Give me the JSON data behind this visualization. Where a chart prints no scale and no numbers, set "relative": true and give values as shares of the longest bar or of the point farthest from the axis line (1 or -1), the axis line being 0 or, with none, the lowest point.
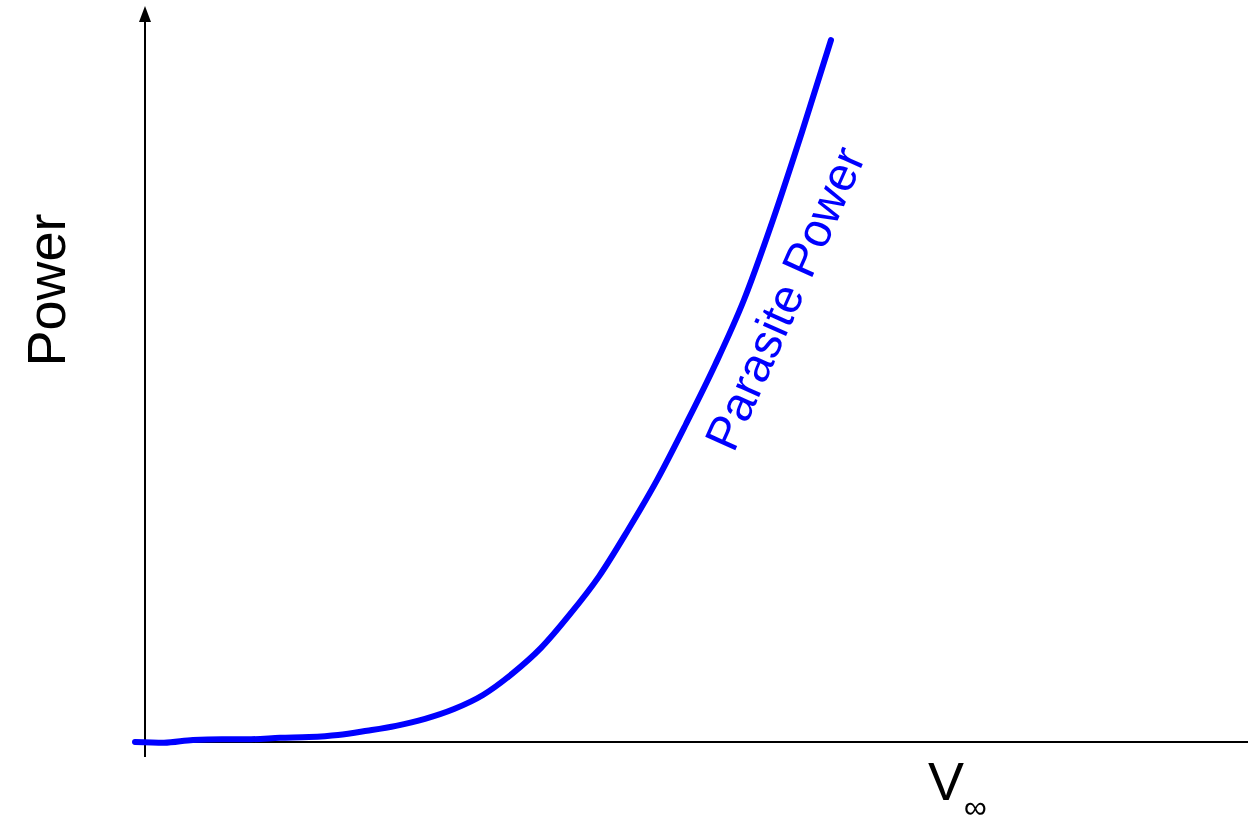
{
  "chart_data": {
    "type": "line",
    "relative": true,
    "xlabel": "V$_{∞}$",
    "ylabel": "Power",
    "annotations": [
      "Parasite Power"
    ],
    "categories": [
      null,
      null,
      null,
      null,
      null,
      null,
      null,
      null,
      null,
      null,
      null,
      null,
      null,
      null,
      null,
      null,
      null,
      null,
      null,
      null,
      null,
      null,
      null,
      null,
      null,
      null,
      null,
      null,
      null,
      null,
      null,
      null,
      null,
      null,
      null,
      null,
      null,
      null
    ],
    "series": [
      {
        "color": "#0000ff",
        "values": [
          0,
          -0.001,
          0.003,
          0.004,
          0.004,
          0.006,
          0.007,
          0.01,
          0.016,
          0.023,
          0.033,
          0.047,
          0.067,
          0.097,
          0.134,
          0.182,
          0.236,
          0.302,
          0.373,
          0.453,
          0.537,
          0.63,
          0.744,
          0.869,
          1,
          null,
          null,
          null,
          null,
          null,
          null,
          null,
          null,
          null,
          null,
          null,
          null,
          null
        ]
      }
    ]
  }
}
